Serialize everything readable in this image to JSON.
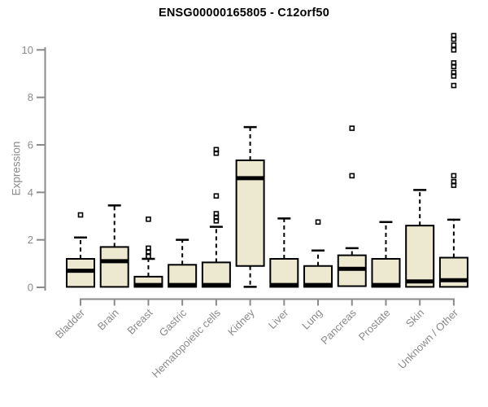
{
  "chart_data": {
    "type": "boxplot",
    "title": "ENSG00000165805 - C12orf50",
    "ylabel": "Expression",
    "ylim": [
      0,
      10
    ],
    "yticks": [
      0,
      2,
      4,
      6,
      8,
      10
    ],
    "grid": false,
    "legend": "none",
    "colors": {
      "box_fill": "#EDE8D0",
      "box_stroke": "#000000",
      "median": "#000000",
      "whisker": "#000000",
      "outlier": "#000000",
      "axis": "#8a8a8a",
      "tick_text": "#8a8a8a",
      "title_text": "#000000",
      "background": "#ffffff"
    },
    "categories": [
      "Bladder",
      "Brain",
      "Breast",
      "Gastric",
      "Hematopoietic cells",
      "Kidney",
      "Liver",
      "Lung",
      "Pancreas",
      "Prostate",
      "Skin",
      "Unknown / Other"
    ],
    "series": [
      {
        "label": "Bladder",
        "whisker_low": 0.02,
        "q1": 0.02,
        "median": 0.7,
        "q3": 1.2,
        "whisker_high": 2.1,
        "outliers": [
          3.05
        ]
      },
      {
        "label": "Brain",
        "whisker_low": 0.02,
        "q1": 0.02,
        "median": 1.1,
        "q3": 1.7,
        "whisker_high": 3.45,
        "outliers": []
      },
      {
        "label": "Breast",
        "whisker_low": 0.02,
        "q1": 0.02,
        "median": 0.1,
        "q3": 0.45,
        "whisker_high": 1.2,
        "outliers": [
          2.87,
          1.65,
          1.5,
          1.3
        ]
      },
      {
        "label": "Gastric",
        "whisker_low": 0.02,
        "q1": 0.02,
        "median": 0.1,
        "q3": 0.95,
        "whisker_high": 2.0,
        "outliers": []
      },
      {
        "label": "Hematopoietic cells",
        "whisker_low": 0.02,
        "q1": 0.02,
        "median": 0.1,
        "q3": 1.05,
        "whisker_high": 2.55,
        "outliers": [
          5.8,
          5.65,
          3.85,
          3.1,
          2.95,
          2.8
        ]
      },
      {
        "label": "Kidney",
        "whisker_low": 0.02,
        "q1": 0.9,
        "median": 4.6,
        "q3": 5.35,
        "whisker_high": 6.75,
        "outliers": []
      },
      {
        "label": "Liver",
        "whisker_low": 0.02,
        "q1": 0.02,
        "median": 0.1,
        "q3": 1.2,
        "whisker_high": 2.9,
        "outliers": []
      },
      {
        "label": "Lung",
        "whisker_low": 0.02,
        "q1": 0.02,
        "median": 0.1,
        "q3": 0.9,
        "whisker_high": 1.55,
        "outliers": [
          2.75
        ]
      },
      {
        "label": "Pancreas",
        "whisker_low": 0.02,
        "q1": 0.05,
        "median": 0.78,
        "q3": 1.35,
        "whisker_high": 1.65,
        "outliers": [
          6.7,
          4.7
        ]
      },
      {
        "label": "Prostate",
        "whisker_low": 0.02,
        "q1": 0.02,
        "median": 0.1,
        "q3": 1.2,
        "whisker_high": 2.75,
        "outliers": []
      },
      {
        "label": "Skin",
        "whisker_low": 0.02,
        "q1": 0.02,
        "median": 0.25,
        "q3": 2.6,
        "whisker_high": 4.1,
        "outliers": []
      },
      {
        "label": "Unknown / Other",
        "whisker_low": 0.02,
        "q1": 0.02,
        "median": 0.3,
        "q3": 1.25,
        "whisker_high": 2.85,
        "outliers": [
          10.6,
          10.45,
          10.2,
          10.0,
          9.45,
          9.3,
          9.05,
          8.9,
          8.5,
          4.7,
          4.45,
          4.3
        ]
      }
    ]
  }
}
